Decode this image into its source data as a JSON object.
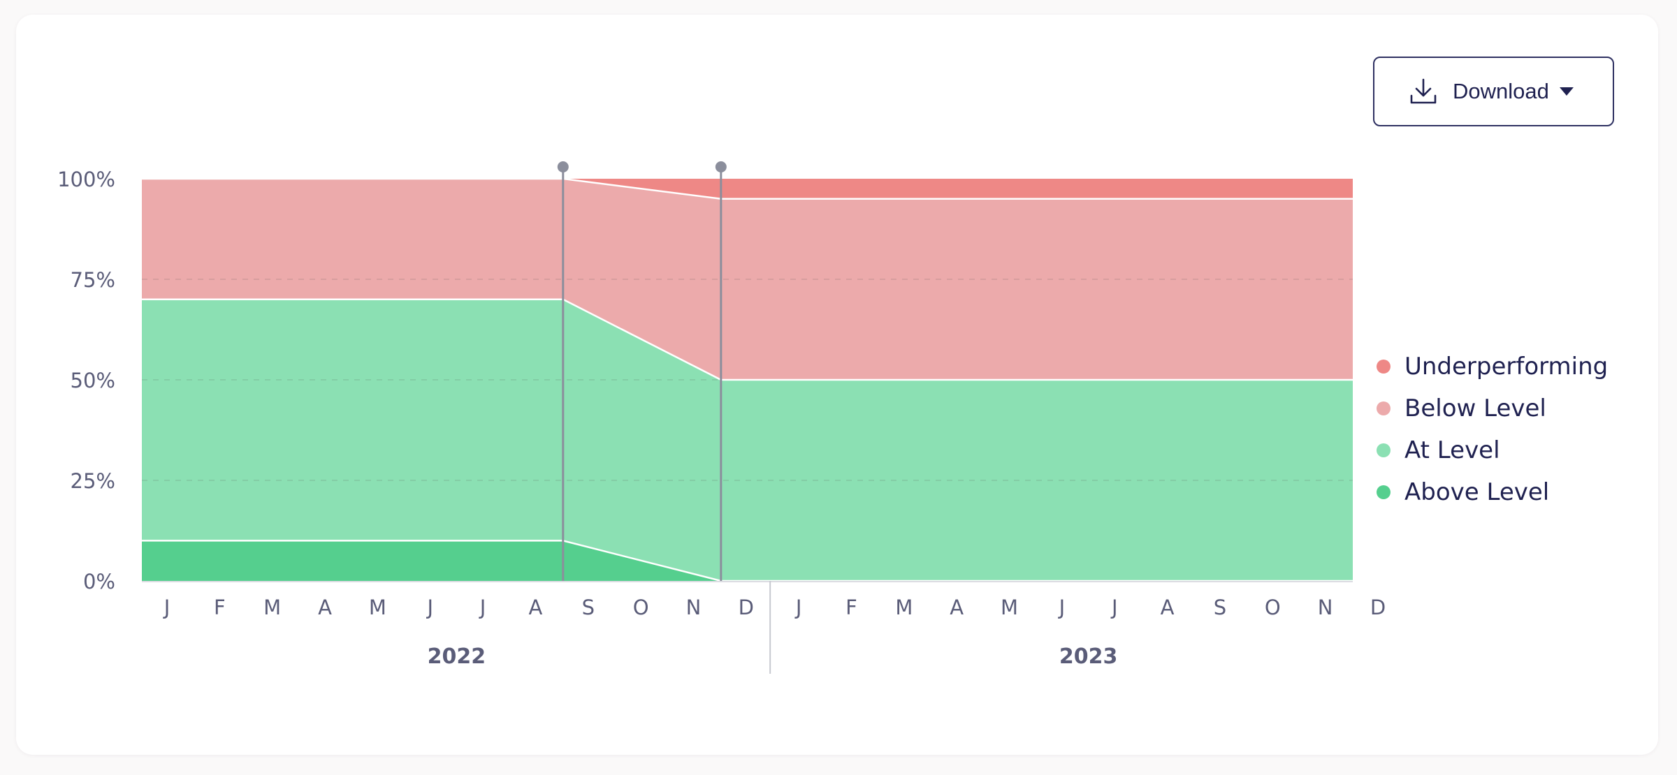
{
  "toolbar": {
    "download_label": "Download",
    "download_icon": "download-icon",
    "caret_icon": "caret-down-icon"
  },
  "colors": {
    "Underperforming": "#ee8886",
    "Below Level": "#ecaaab",
    "At Level": "#8be0b3",
    "Above Level": "#55cf8e",
    "axis_text": "#5a5c78",
    "marker_line": "#8b8e9c"
  },
  "chart_data": {
    "type": "area",
    "stacked": true,
    "title": "",
    "xlabel": "",
    "ylabel": "",
    "ylim": [
      0,
      100
    ],
    "y_ticks": [
      "0%",
      "25%",
      "50%",
      "75%",
      "100%"
    ],
    "grid": true,
    "legend_position": "right",
    "x_groups": [
      {
        "label": "2022",
        "months": [
          "J",
          "F",
          "M",
          "A",
          "M",
          "J",
          "J",
          "A",
          "S",
          "O",
          "N",
          "D"
        ]
      },
      {
        "label": "2023",
        "months": [
          "J",
          "F",
          "M",
          "A",
          "M",
          "J",
          "J",
          "A",
          "S",
          "O",
          "N",
          "D"
        ]
      }
    ],
    "x": [
      "2022-01",
      "2022-09",
      "2022-12",
      "2023-12"
    ],
    "markers": [
      "2022-09",
      "2022-12"
    ],
    "series": [
      {
        "name": "Above Level",
        "values": [
          10,
          10,
          0,
          0
        ]
      },
      {
        "name": "At Level",
        "values": [
          60,
          60,
          50,
          50
        ]
      },
      {
        "name": "Below Level",
        "values": [
          30,
          30,
          45,
          45
        ]
      },
      {
        "name": "Underperforming",
        "values": [
          0,
          0,
          5,
          5
        ]
      }
    ],
    "legend": [
      "Underperforming",
      "Below Level",
      "At Level",
      "Above Level"
    ]
  }
}
